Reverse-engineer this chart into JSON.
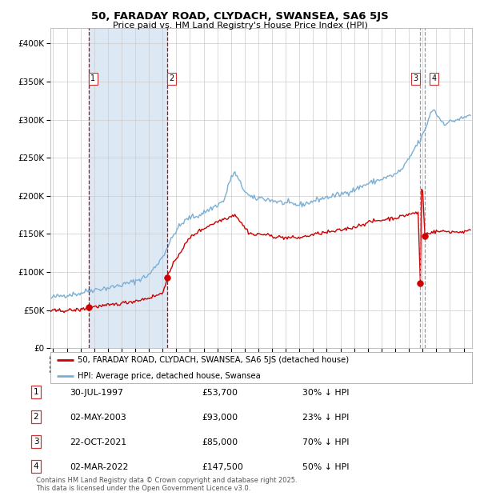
{
  "title": "50, FARADAY ROAD, CLYDACH, SWANSEA, SA6 5JS",
  "subtitle": "Price paid vs. HM Land Registry's House Price Index (HPI)",
  "footer": "Contains HM Land Registry data © Crown copyright and database right 2025.\nThis data is licensed under the Open Government Licence v3.0.",
  "legend_house": "50, FARADAY ROAD, CLYDACH, SWANSEA, SA6 5JS (detached house)",
  "legend_hpi": "HPI: Average price, detached house, Swansea",
  "transactions": [
    {
      "num": "1",
      "date": "30-JUL-1997",
      "price": "£53,700",
      "pct": "30% ↓ HPI"
    },
    {
      "num": "2",
      "date": "02-MAY-2003",
      "price": "£93,000",
      "pct": "23% ↓ HPI"
    },
    {
      "num": "3",
      "date": "22-OCT-2021",
      "price": "£85,000",
      "pct": "70% ↓ HPI"
    },
    {
      "num": "4",
      "date": "02-MAR-2022",
      "price": "£147,500",
      "pct": "50% ↓ HPI"
    }
  ],
  "transaction_dates_decimal": [
    1997.578,
    2003.329,
    2021.808,
    2022.163
  ],
  "transaction_prices": [
    53700,
    93000,
    85000,
    147500
  ],
  "ylim": [
    0,
    420000
  ],
  "xlim_start": 1994.8,
  "xlim_end": 2025.6,
  "color_house": "#cc0000",
  "color_hpi": "#7bafd4",
  "color_shade": "#dce9f5",
  "color_vline12": "#cc0000",
  "color_vline34": "#8899bb",
  "grid_color": "#cccccc",
  "background_color": "#ffffff"
}
